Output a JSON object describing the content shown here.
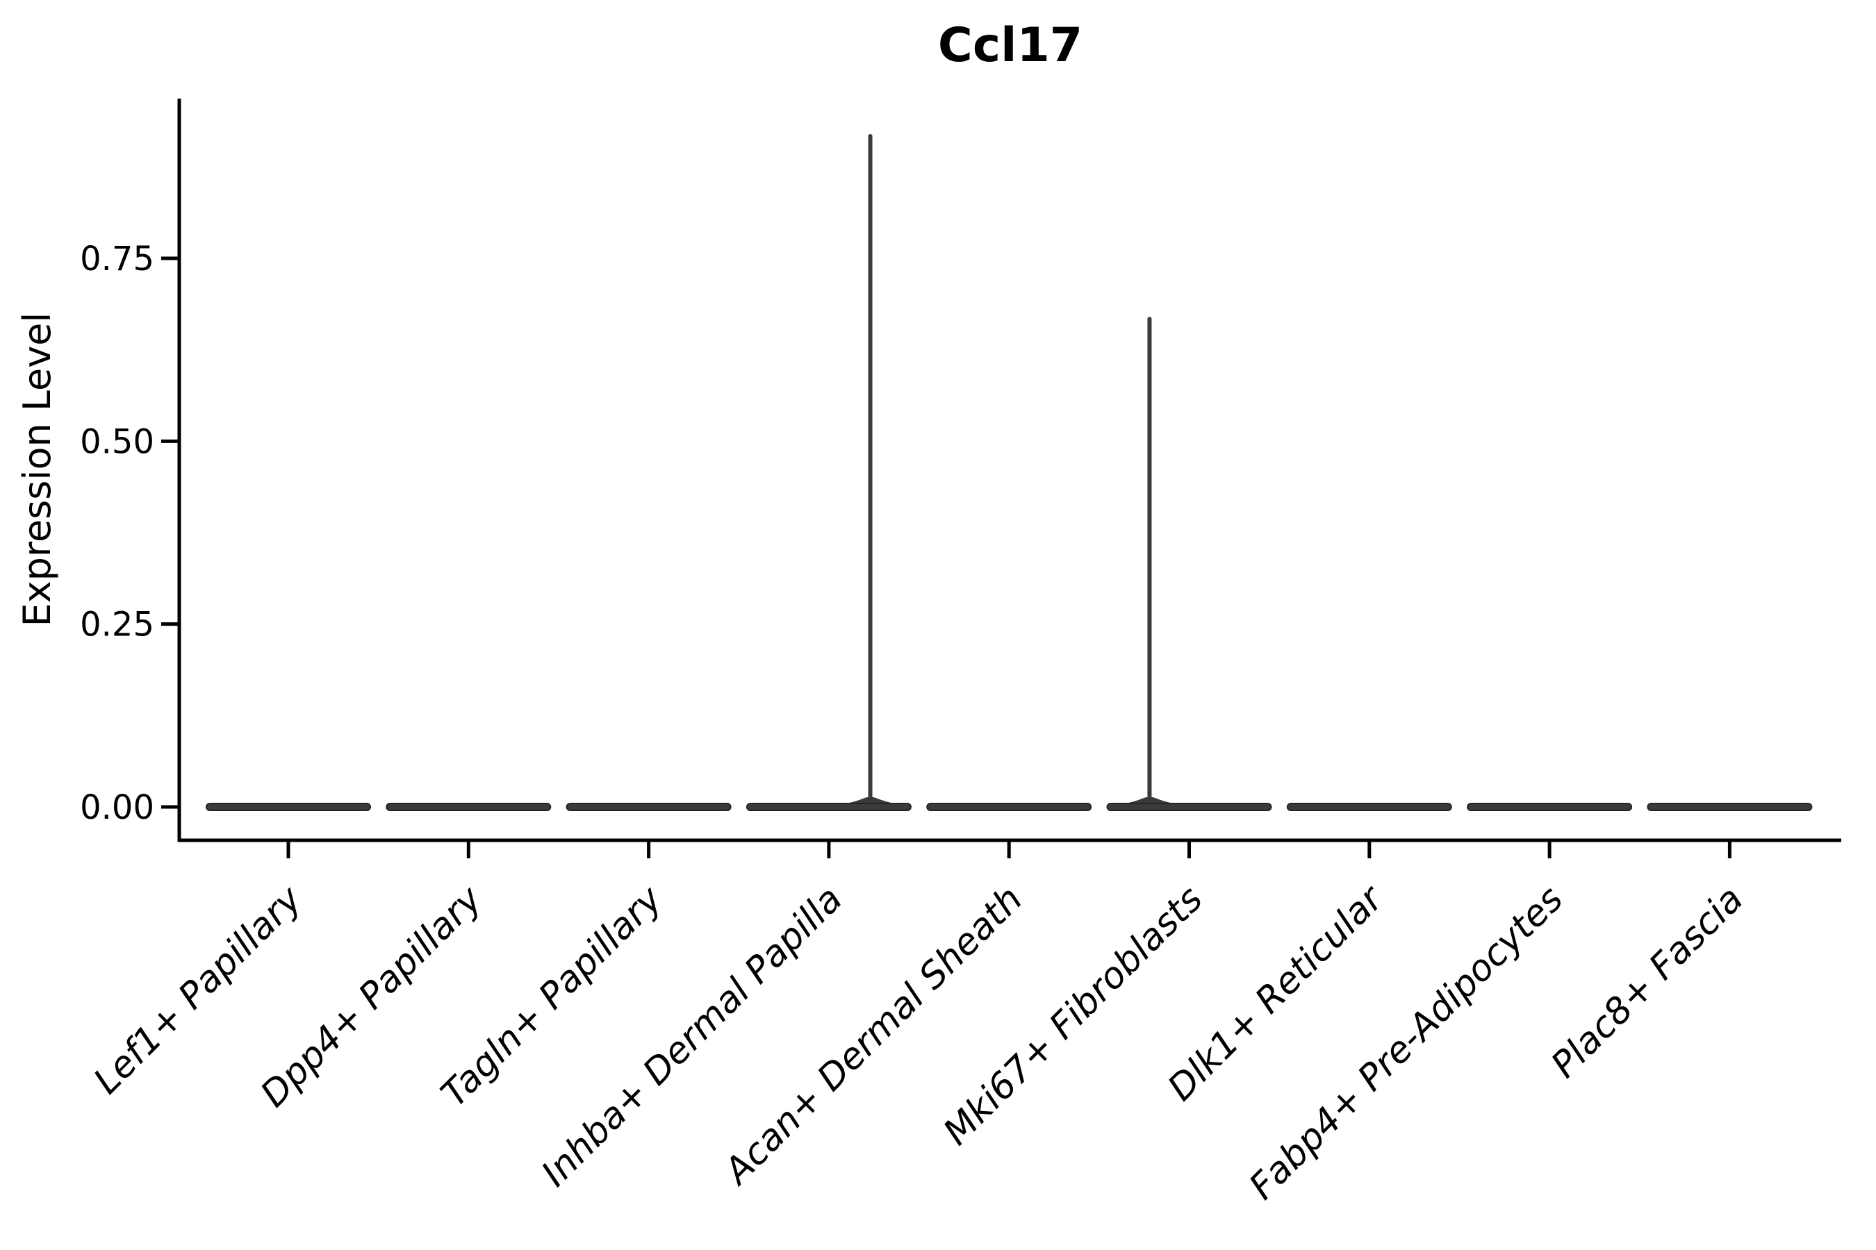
{
  "chart_data": {
    "type": "violin",
    "title": "Ccl17",
    "ylabel": "Expression Level",
    "xlabel": "",
    "grid": false,
    "legend": false,
    "ylim": [
      -0.046,
      0.968
    ],
    "yticks": [
      {
        "value": 0.0,
        "label": "0.00"
      },
      {
        "value": 0.25,
        "label": "0.25"
      },
      {
        "value": 0.5,
        "label": "0.50"
      },
      {
        "value": 0.75,
        "label": "0.75"
      }
    ],
    "categories": [
      "Lef1+ Papillary",
      "Dpp4+ Papillary",
      "Tagln+ Papillary",
      "Inhba+ Dermal Papilla",
      "Acan+ Dermal Sheath",
      "Mki67+ Fibroblasts",
      "Dlk1+ Reticular",
      "Fabp4+ Pre-Adipocytes",
      "Plac8+ Fascia"
    ],
    "violins": [
      {
        "label": "Lef1+ Papillary",
        "bulk_value": 0.0,
        "max_value": 0.0,
        "spike": null
      },
      {
        "label": "Dpp4+ Papillary",
        "bulk_value": 0.0,
        "max_value": 0.0,
        "spike": null
      },
      {
        "label": "Tagln+ Papillary",
        "bulk_value": 0.0,
        "max_value": 0.0,
        "spike": null
      },
      {
        "label": "Inhba+ Dermal Papilla",
        "bulk_value": 0.0,
        "max_value": 0.92,
        "spike": {
          "value": 0.92,
          "offset_frac": 0.23
        }
      },
      {
        "label": "Acan+ Dermal Sheath",
        "bulk_value": 0.0,
        "max_value": 0.0,
        "spike": null
      },
      {
        "label": "Mki67+ Fibroblasts",
        "bulk_value": 0.0,
        "max_value": 0.67,
        "spike": {
          "value": 0.67,
          "offset_frac": -0.22
        }
      },
      {
        "label": "Dlk1+ Reticular",
        "bulk_value": 0.0,
        "max_value": 0.0,
        "spike": null
      },
      {
        "label": "Fabp4+ Pre-Adipocytes",
        "bulk_value": 0.0,
        "max_value": 0.0,
        "spike": null
      },
      {
        "label": "Plac8+ Fascia",
        "bulk_value": 0.0,
        "max_value": 0.0,
        "spike": null
      }
    ],
    "colors": {
      "violin_fill": "#3a3a3a",
      "violin_stroke": "#242424",
      "axis": "#000000",
      "text": "#000000",
      "background": "#ffffff"
    }
  }
}
